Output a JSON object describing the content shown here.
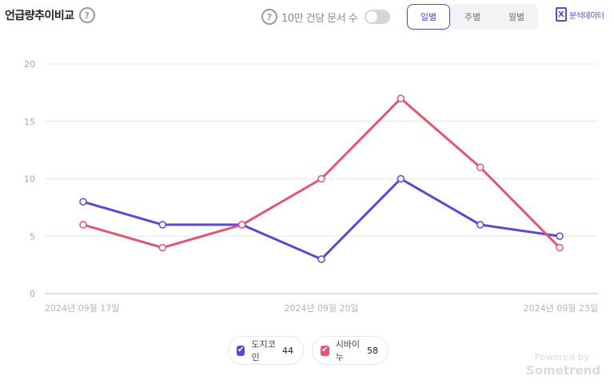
{
  "header": {
    "title": "언급량추이비교",
    "help_glyph": "?",
    "per_doc_label": "10만 건당 문서 수",
    "period_tabs": [
      "일별",
      "주별",
      "월별"
    ],
    "active_period": "일별",
    "export_label": "분석데이터",
    "export_glyph": "X"
  },
  "chart_data": {
    "type": "line",
    "x": [
      "2024-09-17",
      "2024-09-18",
      "2024-09-19",
      "2024-09-20",
      "2024-09-21",
      "2024-09-22",
      "2024-09-23"
    ],
    "x_tick_labels": [
      "2024년 09월 17일",
      "2024년 09월 20일",
      "2024년 09월 23일"
    ],
    "y_ticks": [
      "0",
      "5",
      "10",
      "15",
      "20"
    ],
    "ylim": [
      0,
      20
    ],
    "grid": true,
    "legend_position": "bottom-center",
    "series": [
      {
        "name": "도지코인",
        "total": "44",
        "color": "#5b48d8",
        "values": [
          8,
          6,
          6,
          3,
          10,
          6,
          5
        ]
      },
      {
        "name": "시바이누",
        "total": "58",
        "color": "#e2566f",
        "values": [
          6,
          4,
          6,
          10,
          17,
          11,
          4
        ]
      }
    ]
  },
  "branding": {
    "powered_by": "Powered by",
    "brand": "Sometrend"
  }
}
